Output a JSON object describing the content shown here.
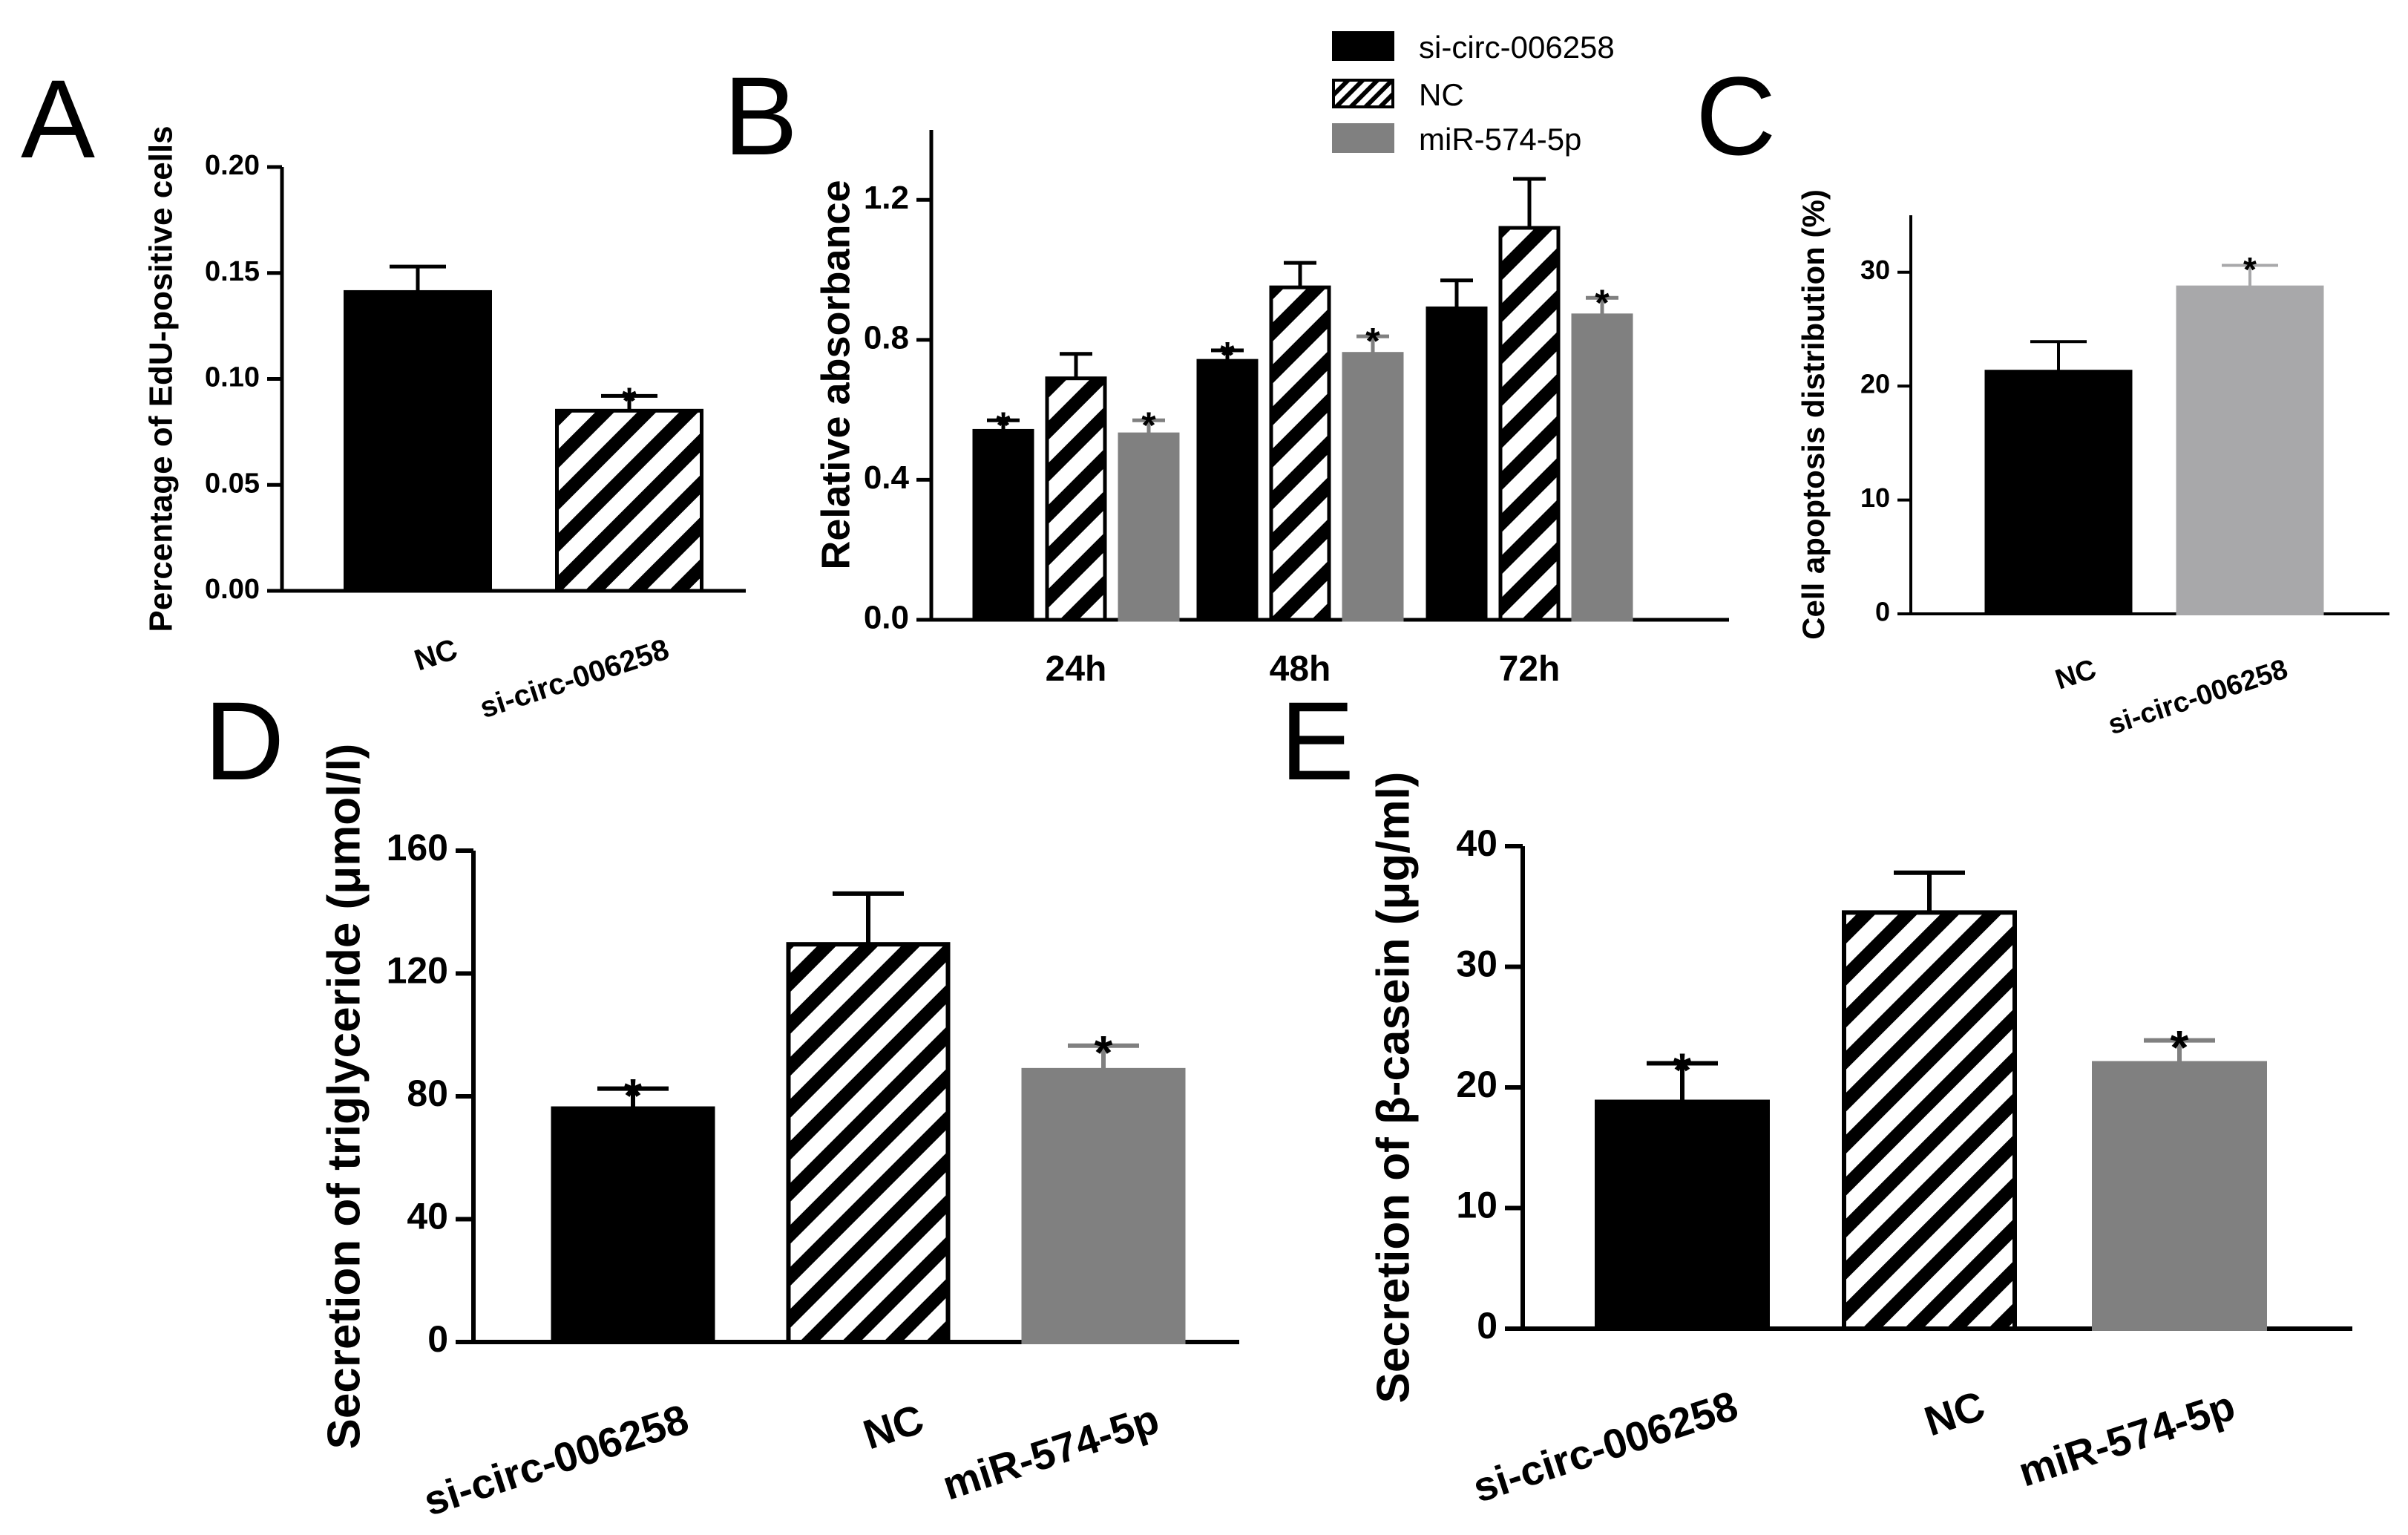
{
  "figure": {
    "legend": [
      {
        "label": "si-circ-006258",
        "fill": "black"
      },
      {
        "label": "NC",
        "fill": "hatch"
      },
      {
        "label": "miR-574-5p",
        "fill": "gray"
      }
    ]
  },
  "chart_data": [
    {
      "panel": "A",
      "type": "bar",
      "ylabel": "Percentage of EdU-positive cells",
      "ylim": [
        0,
        0.2
      ],
      "yticks": [
        "0.00",
        "0.05",
        "0.10",
        "0.15",
        "0.20"
      ],
      "categories": [
        "NC",
        "si-circ-006258"
      ],
      "values": [
        0.141,
        0.085
      ],
      "errors": [
        0.012,
        0.007
      ],
      "fills": [
        "black",
        "hatch"
      ],
      "significance": [
        "",
        "*"
      ]
    },
    {
      "panel": "B",
      "type": "bar",
      "ylabel": "Relative absorbance",
      "ylim": [
        0,
        1.4
      ],
      "yticks": [
        "0.0",
        "0.4",
        "0.8",
        "1.2"
      ],
      "categories": [
        "24h",
        "48h",
        "72h"
      ],
      "series": [
        {
          "name": "si-circ-006258",
          "fill": "black",
          "values": [
            0.54,
            0.74,
            0.89
          ],
          "errors": [
            0.03,
            0.03,
            0.08
          ],
          "significance": [
            "*",
            "*",
            ""
          ]
        },
        {
          "name": "NC",
          "fill": "hatch",
          "values": [
            0.69,
            0.95,
            1.12
          ],
          "errors": [
            0.07,
            0.07,
            0.14
          ],
          "significance": [
            "",
            "",
            ""
          ]
        },
        {
          "name": "miR-574-5p",
          "fill": "gray",
          "values": [
            0.53,
            0.76,
            0.87
          ],
          "errors": [
            0.04,
            0.05,
            0.05
          ],
          "significance": [
            "*",
            "*",
            "*"
          ]
        }
      ]
    },
    {
      "panel": "C",
      "type": "bar",
      "ylabel": "Cell apoptosis distribution (%)",
      "ylim": [
        0,
        35
      ],
      "yticks": [
        "0",
        "10",
        "20",
        "30"
      ],
      "categories": [
        "NC",
        "si-circ-006258"
      ],
      "values": [
        21.3,
        28.7
      ],
      "errors": [
        2.6,
        1.9
      ],
      "fills": [
        "black",
        "lightgray"
      ],
      "significance": [
        "",
        "*"
      ]
    },
    {
      "panel": "D",
      "type": "bar",
      "ylabel": "Secretion of triglyceride (μmol/l)",
      "ylim": [
        0,
        160
      ],
      "yticks": [
        "0",
        "40",
        "80",
        "120",
        "160"
      ],
      "categories": [
        "si-circ-006258",
        "NC",
        "miR-574-5p"
      ],
      "values": [
        76,
        129.5,
        88.5
      ],
      "errors": [
        6.5,
        16.5,
        8
      ],
      "fills": [
        "black",
        "hatch",
        "gray"
      ],
      "significance": [
        "*",
        "",
        "*"
      ]
    },
    {
      "panel": "E",
      "type": "bar",
      "ylabel": "Secretion of β-casein (μg/ml)",
      "ylim": [
        0,
        40
      ],
      "yticks": [
        "0",
        "10",
        "20",
        "30",
        "40"
      ],
      "categories": [
        "si-circ-006258",
        "NC",
        "miR-574-5p"
      ],
      "values": [
        18.8,
        34.5,
        22
      ],
      "errors": [
        3.2,
        3.3,
        1.9
      ],
      "fills": [
        "black",
        "hatch",
        "gray"
      ],
      "significance": [
        "*",
        "",
        "*"
      ]
    }
  ]
}
